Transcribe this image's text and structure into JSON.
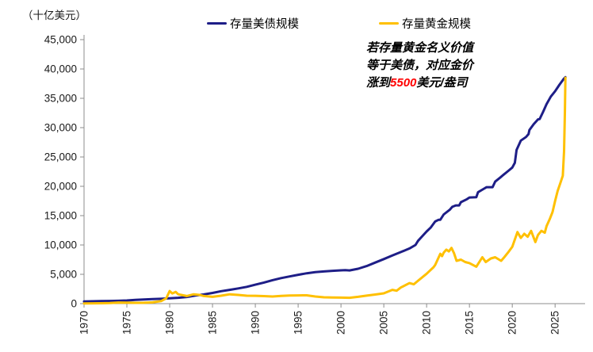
{
  "chart": {
    "unit_label": "（十亿美元）",
    "legend": [
      {
        "label": "存量美债规模",
        "color": "#1E1E87"
      },
      {
        "label": "存量黄金规模",
        "color": "#FFC000"
      }
    ],
    "annotation": {
      "line1": "若存量黄金名义价值",
      "line2": "等于美债，对应金价",
      "line3_prefix": "涨到",
      "line3_highlight": "5500",
      "line3_suffix": "美元/盎司",
      "highlight_color": "#FF0000"
    }
  },
  "chart_data": {
    "type": "line",
    "title": "",
    "xlabel": "",
    "ylabel": "（十亿美元）",
    "unit": "billion USD",
    "ylim": [
      0,
      45000
    ],
    "xlim": [
      1970,
      2028.5
    ],
    "y_ticks": [
      0,
      5000,
      10000,
      15000,
      20000,
      25000,
      30000,
      35000,
      40000,
      45000
    ],
    "x_ticks": [
      1970,
      1975,
      1980,
      1985,
      1990,
      1995,
      2000,
      2005,
      2010,
      2015,
      2020,
      2025
    ],
    "grid": false,
    "legend_position": "top",
    "axis_color": "#8c8c8c",
    "tick_label_color": "#1a1a1a",
    "line_width": 3,
    "series": [
      {
        "name": "存量美债规模",
        "color": "#1E1E87",
        "points": [
          [
            1970,
            370
          ],
          [
            1971,
            400
          ],
          [
            1972,
            435
          ],
          [
            1973,
            460
          ],
          [
            1974,
            485
          ],
          [
            1975,
            540
          ],
          [
            1976,
            630
          ],
          [
            1977,
            705
          ],
          [
            1978,
            775
          ],
          [
            1979,
            830
          ],
          [
            1980,
            910
          ],
          [
            1981,
            1000
          ],
          [
            1982,
            1140
          ],
          [
            1983,
            1380
          ],
          [
            1984,
            1570
          ],
          [
            1985,
            1820
          ],
          [
            1986,
            2120
          ],
          [
            1987,
            2350
          ],
          [
            1988,
            2600
          ],
          [
            1989,
            2860
          ],
          [
            1990,
            3230
          ],
          [
            1991,
            3600
          ],
          [
            1992,
            4000
          ],
          [
            1993,
            4350
          ],
          [
            1994,
            4640
          ],
          [
            1995,
            4920
          ],
          [
            1996,
            5180
          ],
          [
            1997,
            5370
          ],
          [
            1998,
            5480
          ],
          [
            1999,
            5600
          ],
          [
            2000,
            5670
          ],
          [
            2000.5,
            5700
          ],
          [
            2001,
            5660
          ],
          [
            2002,
            5940
          ],
          [
            2003,
            6400
          ],
          [
            2004,
            7000
          ],
          [
            2005,
            7600
          ],
          [
            2006,
            8200
          ],
          [
            2007,
            8800
          ],
          [
            2008,
            9400
          ],
          [
            2008.7,
            10000
          ],
          [
            2009,
            10700
          ],
          [
            2009.5,
            11500
          ],
          [
            2010,
            12300
          ],
          [
            2010.5,
            13000
          ],
          [
            2011,
            14000
          ],
          [
            2011.4,
            14300
          ],
          [
            2011.6,
            14300
          ],
          [
            2012,
            15200
          ],
          [
            2012.7,
            16000
          ],
          [
            2013,
            16500
          ],
          [
            2013.4,
            16740
          ],
          [
            2013.8,
            16740
          ],
          [
            2014,
            17300
          ],
          [
            2014.7,
            17800
          ],
          [
            2015,
            18100
          ],
          [
            2015.8,
            18150
          ],
          [
            2016,
            19000
          ],
          [
            2016.7,
            19600
          ],
          [
            2017,
            19850
          ],
          [
            2017.7,
            19850
          ],
          [
            2018,
            20800
          ],
          [
            2018.6,
            21500
          ],
          [
            2019,
            22000
          ],
          [
            2019.6,
            22700
          ],
          [
            2020,
            23200
          ],
          [
            2020.3,
            24000
          ],
          [
            2020.5,
            26200
          ],
          [
            2021,
            27800
          ],
          [
            2021.6,
            28400
          ],
          [
            2021.9,
            28900
          ],
          [
            2022,
            29600
          ],
          [
            2022.5,
            30600
          ],
          [
            2023,
            31400
          ],
          [
            2023.2,
            31460
          ],
          [
            2023.6,
            32700
          ],
          [
            2024,
            34000
          ],
          [
            2024.5,
            35300
          ],
          [
            2025,
            36200
          ],
          [
            2025.5,
            37300
          ],
          [
            2026,
            38300
          ],
          [
            2026.2,
            38600
          ]
        ]
      },
      {
        "name": "存量黄金规模",
        "color": "#FFC000",
        "points": [
          [
            1970,
            45
          ],
          [
            1971,
            48
          ],
          [
            1972,
            65
          ],
          [
            1973,
            110
          ],
          [
            1974,
            185
          ],
          [
            1975,
            160
          ],
          [
            1976,
            130
          ],
          [
            1977,
            155
          ],
          [
            1978,
            215
          ],
          [
            1979,
            430
          ],
          [
            1979.6,
            900
          ],
          [
            1980,
            2150
          ],
          [
            1980.3,
            1750
          ],
          [
            1980.7,
            2000
          ],
          [
            1981,
            1600
          ],
          [
            1982,
            1300
          ],
          [
            1982.8,
            1600
          ],
          [
            1983.5,
            1480
          ],
          [
            1984,
            1300
          ],
          [
            1985,
            1160
          ],
          [
            1986,
            1350
          ],
          [
            1987,
            1600
          ],
          [
            1988,
            1480
          ],
          [
            1989,
            1350
          ],
          [
            1990,
            1340
          ],
          [
            1991,
            1280
          ],
          [
            1992,
            1220
          ],
          [
            1993,
            1320
          ],
          [
            1994,
            1380
          ],
          [
            1995,
            1400
          ],
          [
            1996,
            1420
          ],
          [
            1997,
            1210
          ],
          [
            1998,
            1080
          ],
          [
            1999,
            1040
          ],
          [
            2000,
            1030
          ],
          [
            2001,
            1000
          ],
          [
            2002,
            1160
          ],
          [
            2003,
            1360
          ],
          [
            2004,
            1560
          ],
          [
            2005,
            1760
          ],
          [
            2006,
            2350
          ],
          [
            2006.5,
            2200
          ],
          [
            2007,
            2750
          ],
          [
            2008,
            3500
          ],
          [
            2008.5,
            3300
          ],
          [
            2009,
            3900
          ],
          [
            2010,
            5100
          ],
          [
            2010.8,
            6200
          ],
          [
            2011,
            6600
          ],
          [
            2011.6,
            8500
          ],
          [
            2011.8,
            8100
          ],
          [
            2012,
            8700
          ],
          [
            2012.3,
            9200
          ],
          [
            2012.6,
            8900
          ],
          [
            2012.9,
            9500
          ],
          [
            2013.2,
            8600
          ],
          [
            2013.5,
            7300
          ],
          [
            2014,
            7500
          ],
          [
            2014.5,
            7100
          ],
          [
            2015,
            6900
          ],
          [
            2015.8,
            6300
          ],
          [
            2016.5,
            7900
          ],
          [
            2016.9,
            7100
          ],
          [
            2017.5,
            7700
          ],
          [
            2018,
            7900
          ],
          [
            2018.7,
            7300
          ],
          [
            2019,
            7800
          ],
          [
            2019.5,
            8700
          ],
          [
            2020,
            9700
          ],
          [
            2020.6,
            12200
          ],
          [
            2021,
            11200
          ],
          [
            2021.4,
            11900
          ],
          [
            2021.8,
            11400
          ],
          [
            2022.2,
            12400
          ],
          [
            2022.7,
            10500
          ],
          [
            2023,
            11700
          ],
          [
            2023.4,
            12400
          ],
          [
            2023.8,
            12100
          ],
          [
            2024,
            13200
          ],
          [
            2024.4,
            14500
          ],
          [
            2024.7,
            15600
          ],
          [
            2025,
            17500
          ],
          [
            2025.3,
            19200
          ],
          [
            2025.6,
            20500
          ],
          [
            2025.9,
            21800
          ],
          [
            2026.05,
            26000
          ],
          [
            2026.15,
            33000
          ],
          [
            2026.2,
            38500
          ]
        ]
      }
    ]
  }
}
